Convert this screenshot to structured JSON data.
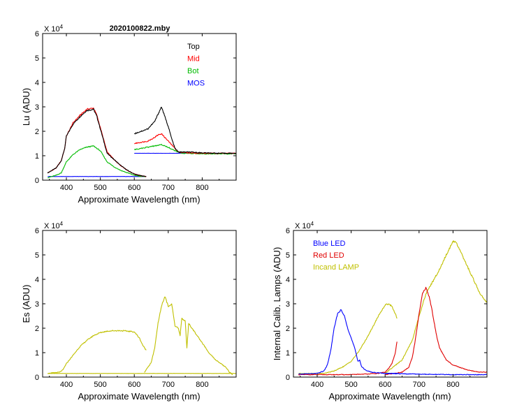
{
  "chart_data": [
    {
      "type": "line",
      "title": "2020100822.mby",
      "xlabel": "Approximate Wavelength (nm)",
      "ylabel": "Lu (ADU)",
      "scale_base": "X 10",
      "scale_exp": "4",
      "xlim": [
        330,
        900
      ],
      "ylim": [
        0,
        6
      ],
      "xticks": [
        "400",
        "500",
        "600",
        "700",
        "800"
      ],
      "yticks": [
        "0",
        "1",
        "2",
        "3",
        "4",
        "5",
        "6"
      ],
      "legend": "top-right",
      "series": [
        {
          "name": "Top",
          "color": "#000000",
          "segments": [
            {
              "x": [
                345,
                370,
                385,
                395,
                400,
                420,
                440,
                460,
                480,
                490,
                500,
                520,
                540,
                560,
                580,
                600,
                620,
                635
              ],
              "y": [
                0.3,
                0.5,
                0.8,
                1.3,
                1.8,
                2.3,
                2.6,
                2.85,
                2.9,
                2.6,
                2.1,
                1.1,
                0.85,
                0.6,
                0.4,
                0.25,
                0.18,
                0.15
              ]
            },
            {
              "x": [
                600,
                620,
                640,
                660,
                670,
                680,
                690,
                700,
                710,
                720,
                730,
                760,
                800,
                850,
                900
              ],
              "y": [
                1.9,
                2.0,
                2.1,
                2.4,
                2.7,
                3.0,
                2.6,
                2.2,
                1.7,
                1.3,
                1.15,
                1.15,
                1.12,
                1.1,
                1.1
              ]
            }
          ]
        },
        {
          "name": "Mid",
          "color": "#ff0000",
          "segments": [
            {
              "x": [
                345,
                370,
                385,
                395,
                400,
                420,
                440,
                460,
                480,
                490,
                500,
                520,
                540,
                560,
                580,
                600,
                620,
                635
              ],
              "y": [
                0.3,
                0.5,
                0.8,
                1.3,
                1.8,
                2.35,
                2.65,
                2.9,
                2.95,
                2.65,
                2.15,
                1.15,
                0.85,
                0.6,
                0.4,
                0.25,
                0.18,
                0.15
              ]
            },
            {
              "x": [
                600,
                620,
                640,
                660,
                670,
                680,
                690,
                700,
                710,
                720,
                730,
                760,
                800,
                850,
                900
              ],
              "y": [
                1.5,
                1.55,
                1.6,
                1.75,
                1.85,
                1.9,
                1.75,
                1.6,
                1.45,
                1.3,
                1.15,
                1.12,
                1.1,
                1.1,
                1.1
              ]
            }
          ]
        },
        {
          "name": "Bot",
          "color": "#00bb00",
          "segments": [
            {
              "x": [
                345,
                370,
                385,
                400,
                420,
                440,
                460,
                480,
                500,
                520,
                540,
                560,
                580,
                600,
                620,
                635
              ],
              "y": [
                0.1,
                0.2,
                0.3,
                0.75,
                1.05,
                1.25,
                1.35,
                1.4,
                1.2,
                0.75,
                0.55,
                0.4,
                0.3,
                0.2,
                0.15,
                0.15
              ]
            },
            {
              "x": [
                600,
                620,
                640,
                660,
                680,
                700,
                720,
                740,
                760,
                800,
                850,
                900
              ],
              "y": [
                1.25,
                1.3,
                1.35,
                1.4,
                1.45,
                1.35,
                1.2,
                1.1,
                1.1,
                1.08,
                1.08,
                1.08
              ]
            }
          ]
        },
        {
          "name": "MOS",
          "color": "#0000ff",
          "segments": [
            {
              "x": [
                345,
                635
              ],
              "y": [
                0.15,
                0.15
              ]
            },
            {
              "x": [
                600,
                900
              ],
              "y": [
                1.1,
                1.1
              ]
            }
          ]
        }
      ]
    },
    {
      "type": "line",
      "title": "",
      "xlabel": "Approximate Wavelength (nm)",
      "ylabel": "Es (ADU)",
      "scale_base": "X 10",
      "scale_exp": "4",
      "xlim": [
        330,
        900
      ],
      "ylim": [
        0,
        6
      ],
      "xticks": [
        "400",
        "500",
        "600",
        "700",
        "800"
      ],
      "yticks": [
        "0",
        "1",
        "2",
        "3",
        "4",
        "5",
        "6"
      ],
      "legend": "none",
      "series": [
        {
          "name": "Es",
          "color": "#c0c000",
          "segments": [
            {
              "x": [
                345,
                380,
                390,
                400,
                420,
                440,
                460,
                480,
                500,
                520,
                540,
                560,
                580,
                600,
                615,
                625,
                635
              ],
              "y": [
                0.15,
                0.2,
                0.3,
                0.55,
                0.9,
                1.25,
                1.5,
                1.7,
                1.82,
                1.88,
                1.9,
                1.9,
                1.88,
                1.85,
                1.6,
                1.3,
                1.1
              ]
            },
            {
              "x": [
                345,
                900
              ],
              "y": [
                0.15,
                0.15
              ]
            },
            {
              "x": [
                630,
                650,
                660,
                670,
                680,
                690,
                700,
                710,
                720,
                730,
                735,
                740,
                750,
                755,
                760,
                770,
                780,
                800,
                820,
                840,
                860,
                870,
                880,
                890
              ],
              "y": [
                0.2,
                0.6,
                1.2,
                2.2,
                2.9,
                3.3,
                2.9,
                3.0,
                2.1,
                2.0,
                1.7,
                2.4,
                2.3,
                1.2,
                2.2,
                2.0,
                1.8,
                1.4,
                1.0,
                0.7,
                0.5,
                0.4,
                0.2,
                0.1
              ]
            }
          ]
        }
      ]
    },
    {
      "type": "line",
      "title": "",
      "xlabel": "Approximate Wavelength (nm)",
      "ylabel": "Internal Calib. Lamps (ADU)",
      "scale_base": "X 10",
      "scale_exp": "4",
      "xlim": [
        330,
        900
      ],
      "ylim": [
        0,
        6
      ],
      "xticks": [
        "400",
        "500",
        "600",
        "700",
        "800"
      ],
      "yticks": [
        "0",
        "1",
        "2",
        "3",
        "4",
        "5",
        "6"
      ],
      "legend": "top-left",
      "series": [
        {
          "name": "Blue LED",
          "color": "#0000ff",
          "segments": [
            {
              "x": [
                345,
                400,
                420,
                430,
                440,
                450,
                460,
                470,
                480,
                490,
                500,
                510,
                520,
                525,
                530,
                540,
                560,
                600,
                640
              ],
              "y": [
                0.12,
                0.15,
                0.25,
                0.5,
                1.1,
                2.0,
                2.6,
                2.75,
                2.5,
                2.0,
                1.6,
                1.2,
                0.65,
                0.7,
                0.45,
                0.3,
                0.2,
                0.15,
                0.15
              ]
            },
            {
              "x": [
                600,
                700,
                800,
                900
              ],
              "y": [
                0.15,
                0.12,
                0.1,
                0.1
              ]
            }
          ]
        },
        {
          "name": "Red LED",
          "color": "#e00000",
          "segments": [
            {
              "x": [
                345,
                500,
                580,
                600,
                610,
                620,
                630,
                635
              ],
              "y": [
                0.1,
                0.1,
                0.15,
                0.2,
                0.35,
                0.55,
                1.0,
                1.45
              ]
            },
            {
              "x": [
                600,
                650,
                670,
                680,
                690,
                700,
                710,
                720,
                730,
                740,
                750,
                760,
                780,
                800,
                840,
                880,
                900
              ],
              "y": [
                0.1,
                0.2,
                0.4,
                0.8,
                1.6,
                2.6,
                3.4,
                3.65,
                3.3,
                2.6,
                1.8,
                1.2,
                0.7,
                0.5,
                0.3,
                0.2,
                0.2
              ]
            }
          ]
        },
        {
          "name": "Incand LAMP",
          "color": "#c0c000",
          "segments": [
            {
              "x": [
                345,
                420,
                450,
                480,
                500,
                520,
                540,
                560,
                580,
                600,
                610,
                620,
                630,
                635
              ],
              "y": [
                0.15,
                0.15,
                0.25,
                0.45,
                0.65,
                1.0,
                1.45,
                1.95,
                2.5,
                2.95,
                3.0,
                2.9,
                2.6,
                2.4
              ]
            },
            {
              "x": [
                600,
                650,
                680,
                700,
                720,
                740,
                760,
                780,
                800,
                810,
                820,
                840,
                860,
                880,
                900
              ],
              "y": [
                0.15,
                0.7,
                1.5,
                2.5,
                3.4,
                3.9,
                4.4,
                5.0,
                5.55,
                5.5,
                5.2,
                4.6,
                4.0,
                3.4,
                3.05
              ]
            }
          ]
        }
      ]
    }
  ]
}
